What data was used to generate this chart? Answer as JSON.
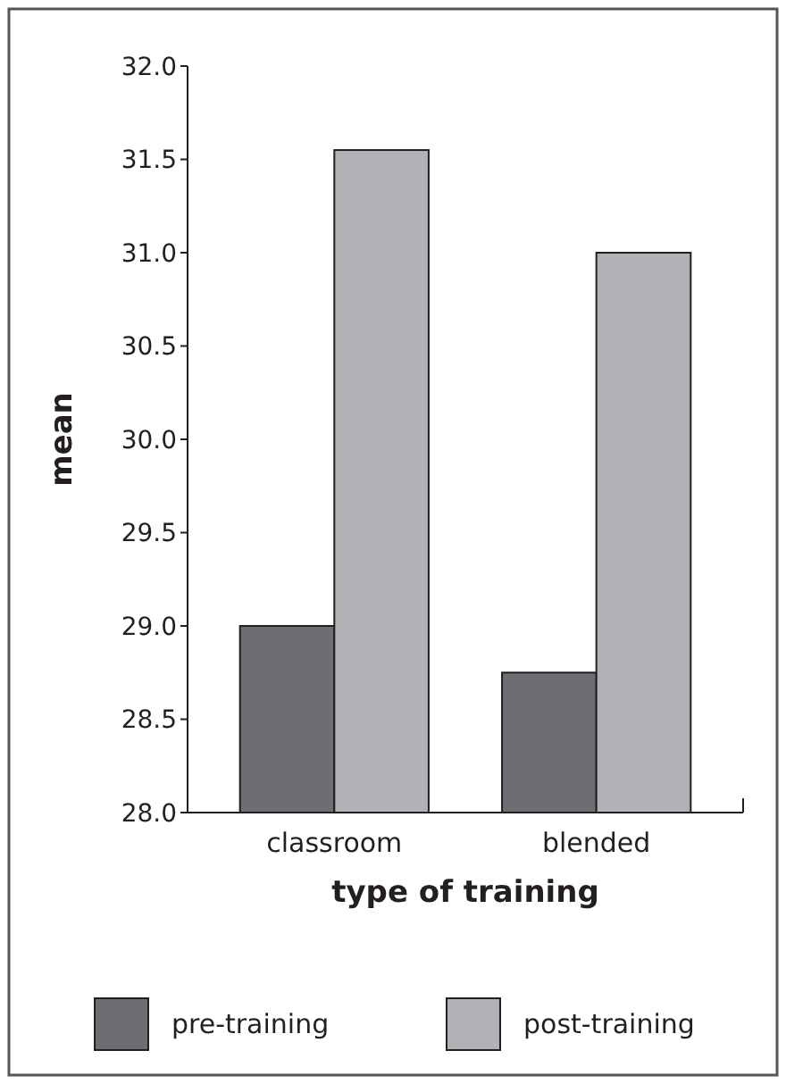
{
  "chart_data": {
    "type": "bar",
    "xlabel": "type of training",
    "ylabel": "mean",
    "categories": [
      "classroom",
      "blended"
    ],
    "series": [
      {
        "name": "pre-training",
        "color": "#6d6e72",
        "values": [
          29.0,
          28.75
        ]
      },
      {
        "name": "post-training",
        "color": "#b1b2b6",
        "values": [
          31.55,
          31.0
        ]
      }
    ],
    "ylim": [
      28,
      32
    ],
    "yticks": [
      {
        "value": 28,
        "label": "28.0"
      },
      {
        "value": 28.5,
        "label": "28.5"
      },
      {
        "value": 29,
        "label": "29.0"
      },
      {
        "value": 29.5,
        "label": "29.5"
      },
      {
        "value": 30,
        "label": "30.0"
      },
      {
        "value": 30.5,
        "label": "30.5"
      },
      {
        "value": 31,
        "label": "31.0"
      },
      {
        "value": 31.5,
        "label": "31.5"
      },
      {
        "value": 32,
        "label": "32.0"
      }
    ],
    "grid": false,
    "legend": "bottom"
  }
}
